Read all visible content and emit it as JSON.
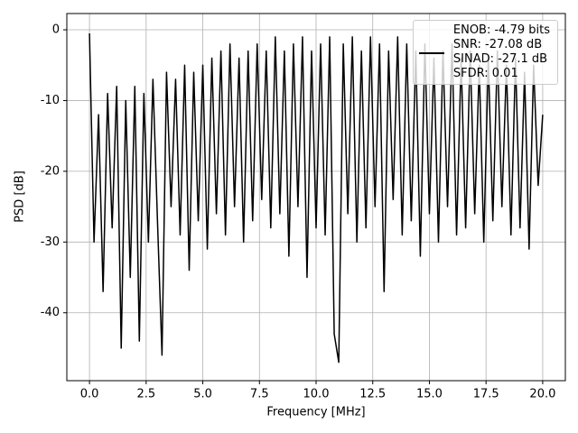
{
  "chart_data": {
    "type": "line",
    "x_label": "Frequency [MHz]",
    "y_label": "PSD [dB]",
    "x": [
      0,
      0.2,
      0.4,
      0.6,
      0.8,
      1,
      1.2,
      1.4,
      1.6,
      1.8,
      2,
      2.2,
      2.4,
      2.6,
      2.8,
      3,
      3.2,
      3.4,
      3.6,
      3.8,
      4,
      4.2,
      4.4,
      4.6,
      4.8,
      5,
      5.2,
      5.4,
      5.6,
      5.8,
      6,
      6.2,
      6.4,
      6.6,
      6.8,
      7,
      7.2,
      7.4,
      7.6,
      7.8,
      8,
      8.2,
      8.4,
      8.6,
      8.8,
      9,
      9.2,
      9.4,
      9.6,
      9.8,
      10,
      10.2,
      10.4,
      10.6,
      10.8,
      11,
      11.2,
      11.4,
      11.6,
      11.8,
      12,
      12.2,
      12.4,
      12.6,
      12.8,
      13,
      13.2,
      13.4,
      13.6,
      13.8,
      14,
      14.2,
      14.4,
      14.6,
      14.8,
      15,
      15.2,
      15.4,
      15.6,
      15.8,
      16,
      16.2,
      16.4,
      16.6,
      16.8,
      17,
      17.2,
      17.4,
      17.6,
      17.8,
      18,
      18.2,
      18.4,
      18.6,
      18.8,
      19,
      19.2,
      19.4,
      19.6,
      19.8,
      20
    ],
    "series": [
      {
        "name": "ENOB: -4.79 bits\nSNR: -27.08 dB\nSINAD: -27.1 dB\nSFDR: 0.01",
        "color": "#000000",
        "values": [
          -0.5,
          -30,
          -12,
          -37,
          -9,
          -28,
          -8,
          -45,
          -10,
          -35,
          -8,
          -44,
          -9,
          -30,
          -7,
          -27,
          -46,
          -6,
          -25,
          -7,
          -29,
          -5,
          -34,
          -6,
          -27,
          -5,
          -31,
          -4,
          -26,
          -3,
          -29,
          -2,
          -25,
          -4,
          -30,
          -3,
          -27,
          -2,
          -24,
          -3,
          -28,
          -1,
          -26,
          -3,
          -32,
          -2,
          -25,
          -1,
          -35,
          -3,
          -28,
          -2,
          -29,
          -1,
          -43,
          -47,
          -2,
          -26,
          -1,
          -30,
          -3,
          -28,
          -1,
          -25,
          -2,
          -37,
          -3,
          -24,
          -1,
          -29,
          -2,
          -27,
          -3,
          -32,
          -2,
          -26,
          -4,
          -30,
          -3,
          -25,
          -2,
          -29,
          -4,
          -28,
          -3,
          -26,
          -5,
          -30,
          -4,
          -27,
          -3,
          -25,
          -5,
          -29,
          -4,
          -28,
          -6,
          -31,
          -5,
          -22,
          -12
        ]
      }
    ],
    "xlim": [
      -1,
      21
    ],
    "ylim": [
      -49.6,
      2.3
    ],
    "xticks": [
      {
        "value": 0,
        "label": "0.0"
      },
      {
        "value": 2.5,
        "label": "2.5"
      },
      {
        "value": 5,
        "label": "5.0"
      },
      {
        "value": 7.5,
        "label": "7.5"
      },
      {
        "value": 10,
        "label": "10.0"
      },
      {
        "value": 12.5,
        "label": "12.5"
      },
      {
        "value": 15,
        "label": "15.0"
      },
      {
        "value": 17.5,
        "label": "17.5"
      },
      {
        "value": 20,
        "label": "20.0"
      }
    ],
    "yticks": [
      -40,
      -30,
      -20,
      -10,
      0
    ],
    "grid": true,
    "legend": "upper right"
  }
}
